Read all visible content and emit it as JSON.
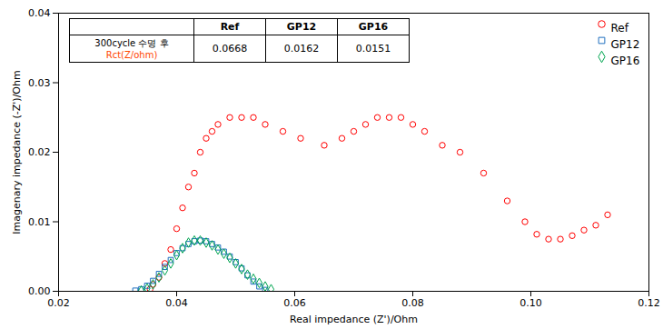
{
  "chart_data": {
    "type": "scatter",
    "xlabel": "Real impedance (Z')/Ohm",
    "ylabel": "Imagenary impedance (-Z')/Ohm",
    "xlim": [
      0.02,
      0.12
    ],
    "ylim": [
      0,
      0.04
    ],
    "xticks": [
      0.02,
      0.04,
      0.06,
      0.08,
      {
        "value": 0.1,
        "label": "0.10"
      },
      0.12
    ],
    "yticks": [
      {
        "value": 0,
        "label": "0.00"
      },
      0.01,
      0.02,
      0.03,
      0.04
    ],
    "grid": false,
    "legend": "upper right",
    "series": [
      {
        "name": "Ref",
        "color": "#FF0000",
        "marker": "circle",
        "values": [
          [
            0.0355,
            0.0003
          ],
          [
            0.036,
            0.001
          ],
          [
            0.037,
            0.002
          ],
          [
            0.038,
            0.004
          ],
          [
            0.039,
            0.006
          ],
          [
            0.04,
            0.009
          ],
          [
            0.041,
            0.012
          ],
          [
            0.042,
            0.015
          ],
          [
            0.043,
            0.017
          ],
          [
            0.044,
            0.02
          ],
          [
            0.045,
            0.022
          ],
          [
            0.046,
            0.023
          ],
          [
            0.047,
            0.024
          ],
          [
            0.049,
            0.025
          ],
          [
            0.051,
            0.025
          ],
          [
            0.053,
            0.025
          ],
          [
            0.055,
            0.024
          ],
          [
            0.058,
            0.023
          ],
          [
            0.061,
            0.022
          ],
          [
            0.065,
            0.021
          ],
          [
            0.068,
            0.022
          ],
          [
            0.07,
            0.023
          ],
          [
            0.072,
            0.024
          ],
          [
            0.074,
            0.025
          ],
          [
            0.076,
            0.025
          ],
          [
            0.078,
            0.025
          ],
          [
            0.08,
            0.024
          ],
          [
            0.082,
            0.023
          ],
          [
            0.085,
            0.021
          ],
          [
            0.088,
            0.02
          ],
          [
            0.092,
            0.017
          ],
          [
            0.096,
            0.013
          ],
          [
            0.099,
            0.01
          ],
          [
            0.101,
            0.0082
          ],
          [
            0.103,
            0.0075
          ],
          [
            0.105,
            0.0075
          ],
          [
            0.107,
            0.008
          ],
          [
            0.109,
            0.0088
          ],
          [
            0.111,
            0.0095
          ],
          [
            0.113,
            0.011
          ]
        ]
      },
      {
        "name": "GP12",
        "color": "#1F6FBF",
        "marker": "square",
        "values": [
          [
            0.033,
            0.0001
          ],
          [
            0.034,
            0.0003
          ],
          [
            0.035,
            0.0008
          ],
          [
            0.036,
            0.0015
          ],
          [
            0.037,
            0.0025
          ],
          [
            0.038,
            0.0035
          ],
          [
            0.039,
            0.0045
          ],
          [
            0.04,
            0.0055
          ],
          [
            0.041,
            0.0062
          ],
          [
            0.042,
            0.0068
          ],
          [
            0.043,
            0.0072
          ],
          [
            0.044,
            0.0073
          ],
          [
            0.045,
            0.0072
          ],
          [
            0.046,
            0.0068
          ],
          [
            0.047,
            0.0063
          ],
          [
            0.048,
            0.0057
          ],
          [
            0.049,
            0.005
          ],
          [
            0.05,
            0.0042
          ],
          [
            0.051,
            0.0033
          ],
          [
            0.052,
            0.0023
          ],
          [
            0.053,
            0.0014
          ],
          [
            0.054,
            0.0007
          ],
          [
            0.055,
            0.0002
          ]
        ]
      },
      {
        "name": "GP16",
        "color": "#00A550",
        "marker": "diamond",
        "values": [
          [
            0.034,
            0.0001
          ],
          [
            0.035,
            0.0004
          ],
          [
            0.036,
            0.001
          ],
          [
            0.037,
            0.002
          ],
          [
            0.038,
            0.003
          ],
          [
            0.039,
            0.004
          ],
          [
            0.04,
            0.0052
          ],
          [
            0.041,
            0.0062
          ],
          [
            0.042,
            0.007
          ],
          [
            0.043,
            0.0073
          ],
          [
            0.044,
            0.0073
          ],
          [
            0.045,
            0.007
          ],
          [
            0.046,
            0.0066
          ],
          [
            0.047,
            0.006
          ],
          [
            0.048,
            0.0054
          ],
          [
            0.049,
            0.0048
          ],
          [
            0.05,
            0.004
          ],
          [
            0.051,
            0.0032
          ],
          [
            0.052,
            0.0024
          ],
          [
            0.053,
            0.0018
          ],
          [
            0.054,
            0.0012
          ],
          [
            0.055,
            0.0007
          ],
          [
            0.056,
            0.0003
          ]
        ]
      }
    ],
    "table": {
      "columns": [
        "Ref",
        "GP12",
        "GP16"
      ],
      "row_label": [
        {
          "text": "300cycle 수명 후"
        },
        {
          "text": "Rct(Z/ohm)",
          "color": "#FF4500"
        }
      ],
      "values": [
        0.0668,
        0.0162,
        0.0151
      ]
    }
  }
}
